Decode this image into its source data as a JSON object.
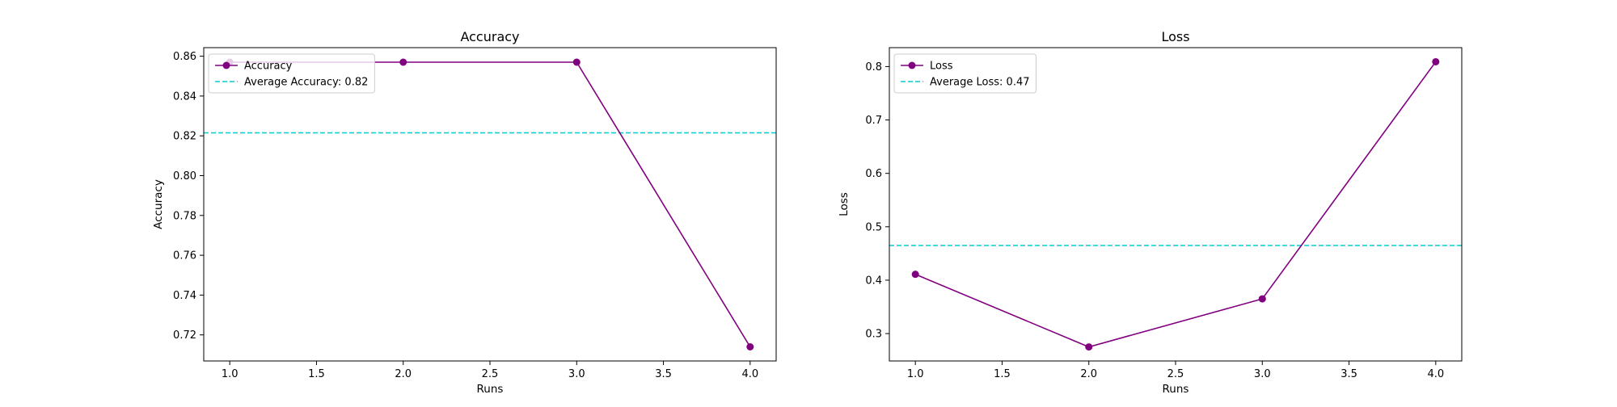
{
  "chart_data": [
    {
      "type": "line",
      "title": "Accuracy",
      "xlabel": "Runs",
      "ylabel": "Accuracy",
      "xlim": [
        0.85,
        4.15
      ],
      "ylim": [
        0.7069,
        0.8643
      ],
      "xticks": [
        1.0,
        1.5,
        2.0,
        2.5,
        3.0,
        3.5,
        4.0
      ],
      "xtick_labels": [
        "1.0",
        "1.5",
        "2.0",
        "2.5",
        "3.0",
        "3.5",
        "4.0"
      ],
      "yticks": [
        0.72,
        0.74,
        0.76,
        0.78,
        0.8,
        0.82,
        0.84,
        0.86
      ],
      "ytick_labels": [
        "0.72",
        "0.74",
        "0.76",
        "0.78",
        "0.80",
        "0.82",
        "0.84",
        "0.86"
      ],
      "grid": false,
      "legend_position": "upper-left",
      "series": [
        {
          "name": "Accuracy",
          "x": [
            1,
            2,
            3,
            4
          ],
          "y": [
            0.857,
            0.857,
            0.857,
            0.714
          ],
          "color": "#800080",
          "style": "line-marker"
        }
      ],
      "reference_lines": [
        {
          "name": "Average Accuracy: 0.82",
          "y": 0.8215,
          "color": "#00CED1",
          "style": "dashed"
        }
      ]
    },
    {
      "type": "line",
      "title": "Loss",
      "xlabel": "Runs",
      "ylabel": "Loss",
      "xlim": [
        0.85,
        4.15
      ],
      "ylim": [
        0.2487,
        0.8354
      ],
      "xticks": [
        1.0,
        1.5,
        2.0,
        2.5,
        3.0,
        3.5,
        4.0
      ],
      "xtick_labels": [
        "1.0",
        "1.5",
        "2.0",
        "2.5",
        "3.0",
        "3.5",
        "4.0"
      ],
      "yticks": [
        0.3,
        0.4,
        0.5,
        0.6,
        0.7,
        0.8
      ],
      "ytick_labels": [
        "0.3",
        "0.4",
        "0.5",
        "0.6",
        "0.7",
        "0.8"
      ],
      "grid": false,
      "legend_position": "upper-left",
      "series": [
        {
          "name": "Loss",
          "x": [
            1,
            2,
            3,
            4
          ],
          "y": [
            0.411,
            0.275,
            0.365,
            0.809
          ],
          "color": "#800080",
          "style": "line-marker"
        }
      ],
      "reference_lines": [
        {
          "name": "Average Loss: 0.47",
          "y": 0.465,
          "color": "#00CED1",
          "style": "dashed"
        }
      ]
    }
  ]
}
